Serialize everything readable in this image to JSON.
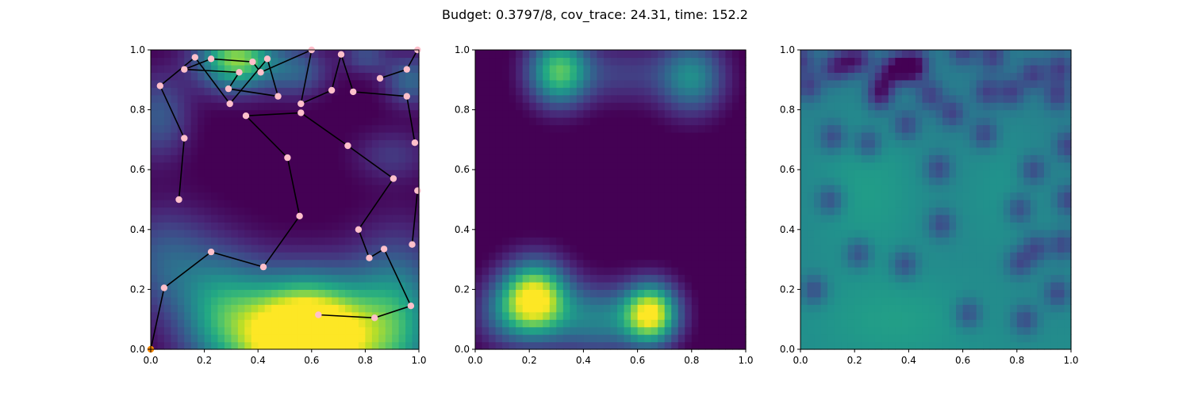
{
  "figure": {
    "suptitle": "Budget: 0.3797/8,  cov_trace: 24.31,  time: 152.2"
  },
  "colors": {
    "viridis_stops": [
      "#440154",
      "#482475",
      "#414487",
      "#355f8d",
      "#2a788e",
      "#21918c",
      "#22a884",
      "#44bf70",
      "#7ad151",
      "#bddf26",
      "#fde725"
    ],
    "path_line": "#000000",
    "waypoint": "#ffc0cb",
    "start_marker": "#ff8c00",
    "axis": "#000000",
    "background": "#ffffff"
  },
  "chart_data": [
    {
      "type": "heatmap",
      "name": "predicted-field-with-path",
      "title": "",
      "xlabel": "",
      "ylabel": "",
      "xlim": [
        0,
        1
      ],
      "ylim": [
        0,
        1
      ],
      "xticks": [
        "0.0",
        "0.2",
        "0.4",
        "0.6",
        "0.8",
        "1.0"
      ],
      "yticks": [
        "0.0",
        "0.2",
        "0.4",
        "0.6",
        "0.8",
        "1.0"
      ],
      "grid_resolution": 40,
      "field": {
        "baseline": -0.02,
        "blobs": [
          {
            "x": 0.58,
            "y": 0.04,
            "sx": 0.17,
            "sy": 0.13,
            "amp": 1.55
          },
          {
            "x": 0.26,
            "y": 0.13,
            "sx": 0.12,
            "sy": 0.14,
            "amp": 0.5
          },
          {
            "x": 0.92,
            "y": 0.1,
            "sx": 0.12,
            "sy": 0.18,
            "amp": 0.55
          },
          {
            "x": 0.05,
            "y": 0.3,
            "sx": 0.12,
            "sy": 0.12,
            "amp": 0.3
          },
          {
            "x": 0.32,
            "y": 0.97,
            "sx": 0.1,
            "sy": 0.07,
            "amp": 0.85
          },
          {
            "x": 0.55,
            "y": 0.93,
            "sx": 0.08,
            "sy": 0.06,
            "amp": 0.3
          },
          {
            "x": 0.97,
            "y": 0.9,
            "sx": 0.07,
            "sy": 0.06,
            "amp": 0.35
          },
          {
            "x": 0.8,
            "y": 0.98,
            "sx": 0.06,
            "sy": 0.04,
            "amp": 0.25
          },
          {
            "x": 0.9,
            "y": 0.65,
            "sx": 0.1,
            "sy": 0.06,
            "amp": 0.18
          },
          {
            "x": 0.03,
            "y": 0.78,
            "sx": 0.08,
            "sy": 0.1,
            "amp": 0.3
          }
        ]
      },
      "path": {
        "start": {
          "x": 0.0,
          "y": 0.0
        },
        "waypoints": [
          [
            0.0,
            0.0
          ],
          [
            0.05,
            0.205
          ],
          [
            0.225,
            0.325
          ],
          [
            0.42,
            0.275
          ],
          [
            0.555,
            0.445
          ],
          [
            0.51,
            0.64
          ],
          [
            0.355,
            0.78
          ],
          [
            0.56,
            0.79
          ],
          [
            0.735,
            0.68
          ],
          [
            0.905,
            0.57
          ],
          [
            0.775,
            0.4
          ],
          [
            0.815,
            0.305
          ],
          [
            0.87,
            0.335
          ],
          [
            0.97,
            0.145
          ],
          [
            0.835,
            0.105
          ],
          [
            0.625,
            0.115
          ]
        ],
        "branch_a": [
          [
            0.105,
            0.5
          ],
          [
            0.125,
            0.705
          ],
          [
            0.035,
            0.88
          ],
          [
            0.165,
            0.975
          ],
          [
            0.295,
            0.82
          ],
          [
            0.435,
            0.97
          ],
          [
            0.475,
            0.845
          ],
          [
            0.29,
            0.87
          ],
          [
            0.33,
            0.925
          ],
          [
            0.125,
            0.935
          ],
          [
            0.225,
            0.97
          ],
          [
            0.38,
            0.96
          ],
          [
            0.41,
            0.925
          ],
          [
            0.6,
            1.0
          ],
          [
            0.56,
            0.82
          ],
          [
            0.675,
            0.865
          ],
          [
            0.71,
            0.985
          ],
          [
            0.755,
            0.86
          ],
          [
            0.955,
            0.845
          ],
          [
            0.985,
            0.69
          ]
        ],
        "branch_b": [
          [
            0.855,
            0.905
          ],
          [
            0.955,
            0.935
          ],
          [
            0.995,
            1.0
          ]
        ],
        "branch_c": [
          [
            0.995,
            0.53
          ],
          [
            0.975,
            0.35
          ]
        ]
      }
    },
    {
      "type": "heatmap",
      "name": "true-field",
      "title": "",
      "xlabel": "",
      "ylabel": "",
      "xlim": [
        0,
        1
      ],
      "ylim": [
        0,
        1
      ],
      "xticks": [
        "0.0",
        "0.2",
        "0.4",
        "0.6",
        "0.8",
        "1.0"
      ],
      "yticks": [
        "0.0",
        "0.2",
        "0.4",
        "0.6",
        "0.8",
        "1.0"
      ],
      "grid_resolution": 40,
      "field": {
        "baseline": -0.03,
        "blobs": [
          {
            "x": 0.22,
            "y": 0.17,
            "sx": 0.085,
            "sy": 0.085,
            "amp": 1.05
          },
          {
            "x": 0.65,
            "y": 0.12,
            "sx": 0.07,
            "sy": 0.07,
            "amp": 1.0
          },
          {
            "x": 0.45,
            "y": 0.1,
            "sx": 0.12,
            "sy": 0.08,
            "amp": 0.45
          },
          {
            "x": 0.1,
            "y": 0.12,
            "sx": 0.08,
            "sy": 0.08,
            "amp": 0.25
          },
          {
            "x": 0.31,
            "y": 0.93,
            "sx": 0.08,
            "sy": 0.08,
            "amp": 0.75
          },
          {
            "x": 0.8,
            "y": 0.91,
            "sx": 0.085,
            "sy": 0.085,
            "amp": 0.5
          },
          {
            "x": 0.55,
            "y": 0.92,
            "sx": 0.12,
            "sy": 0.07,
            "amp": 0.2
          }
        ]
      }
    },
    {
      "type": "heatmap",
      "name": "covariance-field",
      "title": "",
      "xlabel": "",
      "ylabel": "",
      "xlim": [
        0,
        1
      ],
      "ylim": [
        0,
        1
      ],
      "xticks": [
        "0.0",
        "0.2",
        "0.4",
        "0.6",
        "0.8",
        "1.0"
      ],
      "yticks": [
        "0.0",
        "0.2",
        "0.4",
        "0.6",
        "0.8",
        "1.0"
      ],
      "grid_resolution": 40,
      "field": {
        "baseline": 0.42,
        "ramp_bottom": 0.06,
        "blobs": [
          {
            "x": 0.25,
            "y": 0.55,
            "sx": 0.14,
            "sy": 0.18,
            "amp": 0.1
          },
          {
            "x": 0.75,
            "y": 0.55,
            "sx": 0.12,
            "sy": 0.15,
            "amp": 0.06
          },
          {
            "x": 0.35,
            "y": 0.1,
            "sx": 0.2,
            "sy": 0.1,
            "amp": 0.08
          }
        ],
        "dips": {
          "amp": -0.24,
          "sigma": 0.035,
          "points": [
            [
              0.05,
              0.2
            ],
            [
              0.215,
              0.32
            ],
            [
              0.385,
              0.285
            ],
            [
              0.52,
              0.42
            ],
            [
              0.51,
              0.605
            ],
            [
              0.39,
              0.75
            ],
            [
              0.56,
              0.79
            ],
            [
              0.68,
              0.72
            ],
            [
              0.86,
              0.6
            ],
            [
              0.81,
              0.47
            ],
            [
              0.81,
              0.29
            ],
            [
              0.87,
              0.34
            ],
            [
              0.95,
              0.19
            ],
            [
              0.83,
              0.1
            ],
            [
              0.62,
              0.12
            ],
            [
              0.11,
              0.5
            ],
            [
              0.12,
              0.71
            ],
            [
              0.03,
              0.88
            ],
            [
              0.17,
              0.96
            ],
            [
              0.29,
              0.84
            ],
            [
              0.43,
              0.96
            ],
            [
              0.48,
              0.85
            ],
            [
              0.3,
              0.88
            ],
            [
              0.33,
              0.93
            ],
            [
              0.12,
              0.94
            ],
            [
              0.22,
              0.97
            ],
            [
              0.37,
              0.95
            ],
            [
              0.41,
              0.93
            ],
            [
              0.6,
              1.0
            ],
            [
              0.69,
              0.86
            ],
            [
              0.71,
              0.98
            ],
            [
              0.78,
              0.86
            ],
            [
              0.95,
              0.85
            ],
            [
              0.99,
              0.68
            ],
            [
              0.86,
              0.92
            ],
            [
              0.96,
              0.94
            ],
            [
              0.99,
              0.5
            ],
            [
              0.97,
              0.35
            ],
            [
              0.0,
              0.97
            ],
            [
              0.25,
              0.69
            ]
          ]
        }
      }
    }
  ]
}
